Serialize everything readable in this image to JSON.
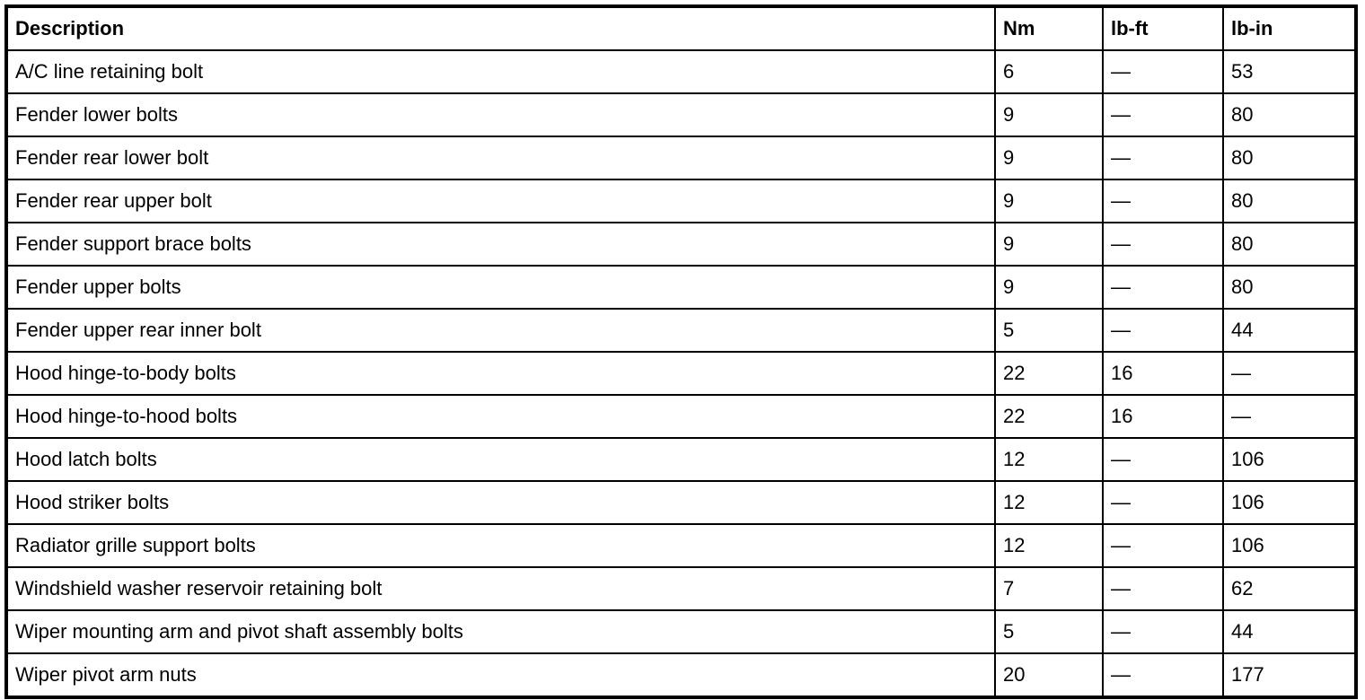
{
  "table": {
    "headers": [
      "Description",
      "Nm",
      "lb-ft",
      "lb-in"
    ],
    "rows": [
      [
        "A/C line retaining bolt",
        "6",
        "—",
        "53"
      ],
      [
        "Fender lower bolts",
        "9",
        "—",
        "80"
      ],
      [
        "Fender rear lower bolt",
        "9",
        "—",
        "80"
      ],
      [
        "Fender rear upper bolt",
        "9",
        "—",
        "80"
      ],
      [
        "Fender support brace bolts",
        "9",
        "—",
        "80"
      ],
      [
        "Fender upper bolts",
        "9",
        "—",
        "80"
      ],
      [
        "Fender upper rear inner bolt",
        "5",
        "—",
        "44"
      ],
      [
        "Hood hinge-to-body bolts",
        "22",
        "16",
        "—"
      ],
      [
        "Hood hinge-to-hood bolts",
        "22",
        "16",
        "—"
      ],
      [
        "Hood latch bolts",
        "12",
        "—",
        "106"
      ],
      [
        "Hood striker bolts",
        "12",
        "—",
        "106"
      ],
      [
        "Radiator grille support bolts",
        "12",
        "—",
        "106"
      ],
      [
        "Windshield washer reservoir retaining bolt",
        "7",
        "—",
        "62"
      ],
      [
        "Wiper mounting arm and pivot shaft assembly bolts",
        "5",
        "—",
        "44"
      ],
      [
        "Wiper pivot arm nuts",
        "20",
        "—",
        "177"
      ]
    ]
  }
}
